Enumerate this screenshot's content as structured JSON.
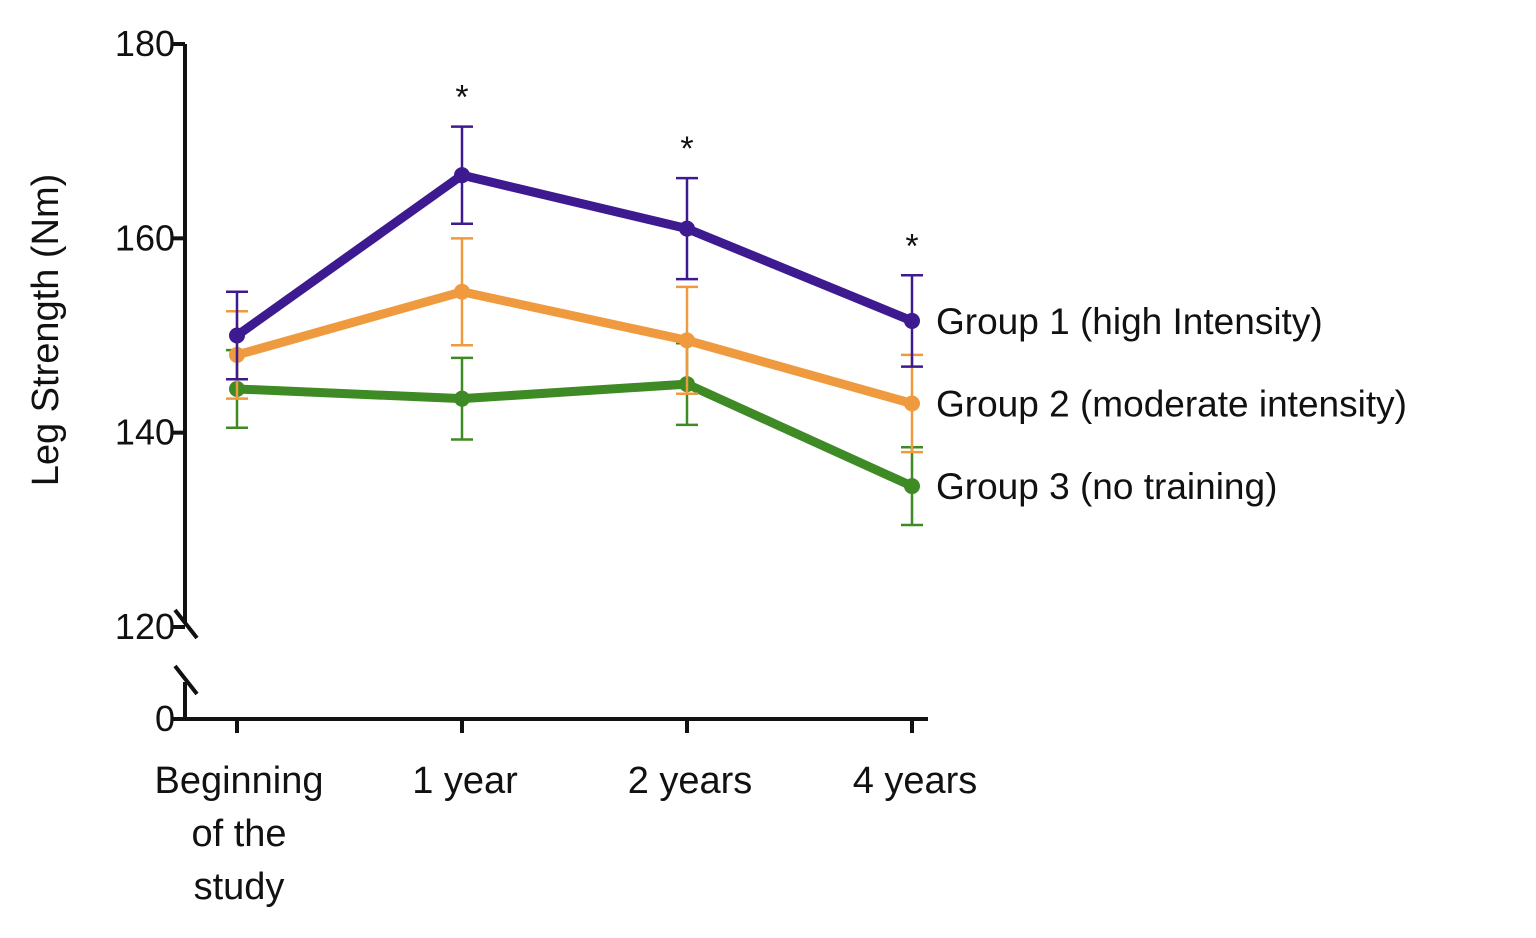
{
  "chart_data": {
    "type": "line",
    "title": "",
    "xlabel": "",
    "ylabel": "Leg Strength (Nm)",
    "x_categories": [
      [
        "Beginning",
        "of the",
        "study"
      ],
      [
        "1 year"
      ],
      [
        "2 years"
      ],
      [
        "4 years"
      ]
    ],
    "y_ticks": [
      0,
      120,
      140,
      160,
      180
    ],
    "y_axis_break": [
      0,
      120
    ],
    "ylim": [
      120,
      180
    ],
    "grid": false,
    "legend_placement": "right, next to line ends",
    "significance_markers": [
      "",
      "*",
      "*",
      "*"
    ],
    "series": [
      {
        "name": "Group 1 (high Intensity)",
        "color": "#3d1a8f",
        "values": [
          150,
          166.5,
          161,
          151.5
        ],
        "error": [
          4.5,
          5,
          5.2,
          4.7
        ]
      },
      {
        "name": "Group 2 (moderate intensity)",
        "color": "#ef9a3e",
        "values": [
          148,
          154.5,
          149.5,
          143
        ],
        "error": [
          4.5,
          5.5,
          5.5,
          5
        ]
      },
      {
        "name": "Group 3 (no training)",
        "color": "#3e8a24",
        "values": [
          144.5,
          143.5,
          145,
          134.5
        ],
        "error": [
          4,
          4.2,
          4.2,
          4
        ]
      }
    ]
  }
}
